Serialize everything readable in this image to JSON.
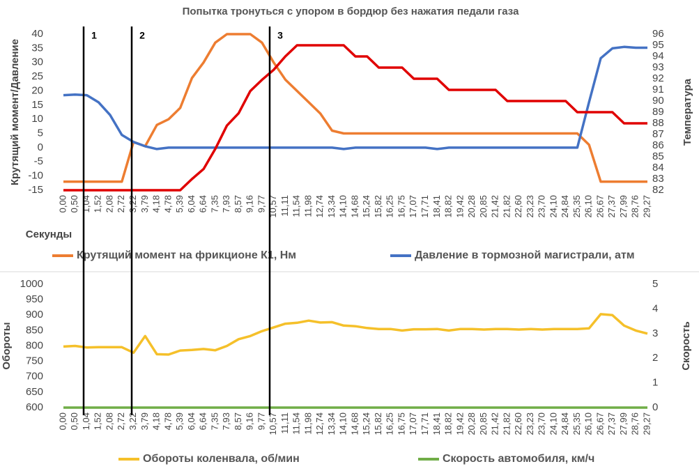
{
  "chart_data": [
    {
      "type": "line",
      "title": "Попытка тронуться с упором в бордюр без нажатия педали газа",
      "x_label": "Секунды",
      "y_label": "Крутящий момент/Давление",
      "y2_label": "Температура",
      "annotations": [
        "1",
        "2",
        "3"
      ],
      "categories": [
        "0,00",
        "0,50",
        "1,04",
        "1,52",
        "2,08",
        "2,72",
        "3,22",
        "3,79",
        "4,18",
        "4,78",
        "5,39",
        "6,04",
        "6,64",
        "7,35",
        "7,93",
        "8,57",
        "9,16",
        "9,77",
        "10,57",
        "11,11",
        "11,54",
        "11,98",
        "12,74",
        "13,34",
        "14,10",
        "14,68",
        "15,24",
        "15,82",
        "16,25",
        "16,75",
        "17,07",
        "17,71",
        "18,41",
        "18,82",
        "19,42",
        "20,28",
        "20,85",
        "21,42",
        "21,82",
        "22,60",
        "23,23",
        "23,70",
        "24,10",
        "24,84",
        "25,35",
        "26,10",
        "26,67",
        "27,37",
        "27,99",
        "28,76",
        "29,27"
      ],
      "series": [
        {
          "name": "Крутящий момент на фрикционе К1, Нм",
          "color": "#ed7d31",
          "values": [
            -12,
            -12,
            -12,
            -12,
            -12,
            -12,
            2,
            0.5,
            8,
            10,
            14,
            24.5,
            30,
            37,
            40,
            40,
            40,
            37,
            30,
            24,
            20,
            16,
            12,
            6,
            5,
            5,
            5,
            5,
            5,
            5,
            5,
            5,
            5,
            5,
            5,
            5,
            5,
            5,
            5,
            5,
            5,
            5,
            5,
            5,
            5,
            1,
            -12,
            -12,
            -12,
            -12,
            -12
          ]
        },
        {
          "name": "Давление в тормозной магистрали, атм",
          "color": "#4472c4",
          "values": [
            18.5,
            18.7,
            18.5,
            16,
            11.5,
            4.5,
            2,
            0.5,
            -0.5,
            0,
            0,
            0,
            0,
            0,
            0,
            0,
            0,
            0,
            0,
            0,
            0,
            0,
            0,
            0,
            -0.5,
            0,
            0,
            0,
            0,
            0,
            0,
            0,
            -0.5,
            0,
            0,
            0,
            0,
            0,
            0,
            0,
            0,
            0,
            0,
            0,
            0,
            16,
            31.5,
            35,
            35.5,
            35.2,
            35.2
          ]
        },
        {
          "color": "#e00000",
          "axis": "y2",
          "values": [
            82,
            82,
            82,
            82,
            82,
            82,
            82,
            82,
            82,
            82,
            82,
            83,
            83.9,
            85.7,
            87.8,
            88.9,
            90.9,
            91.9,
            92.8,
            94,
            95,
            95,
            95,
            95,
            95,
            94,
            94,
            93,
            93,
            93,
            92,
            92,
            92,
            91,
            91,
            91,
            91,
            91,
            90,
            90,
            90,
            90,
            90,
            90,
            89,
            89,
            89,
            89,
            88,
            88,
            88
          ]
        }
      ],
      "ylim": [
        -15,
        40
      ],
      "yticks": [
        -15,
        -10,
        -5,
        0,
        5,
        10,
        15,
        20,
        25,
        30,
        35,
        40
      ],
      "y2lim": [
        82,
        96
      ],
      "y2ticks": [
        82,
        83,
        84,
        85,
        86,
        87,
        88,
        89,
        90,
        91,
        92,
        93,
        94,
        95,
        96
      ]
    },
    {
      "type": "line",
      "y_label": "Обороты",
      "y2_label": "Скорость",
      "categories": [
        "0,00",
        "0,50",
        "1,04",
        "1,52",
        "2,08",
        "2,72",
        "3,22",
        "3,79",
        "4,18",
        "4,78",
        "5,39",
        "6,04",
        "6,64",
        "7,35",
        "7,93",
        "8,57",
        "9,16",
        "9,77",
        "10,57",
        "11,11",
        "11,54",
        "11,98",
        "12,74",
        "13,34",
        "14,10",
        "14,68",
        "15,24",
        "15,82",
        "16,25",
        "16,75",
        "17,07",
        "17,71",
        "18,41",
        "18,82",
        "19,42",
        "20,28",
        "20,85",
        "21,42",
        "21,82",
        "22,60",
        "23,23",
        "23,70",
        "24,10",
        "24,84",
        "25,35",
        "26,10",
        "26,67",
        "27,37",
        "27,99",
        "28,76",
        "29,27"
      ],
      "series": [
        {
          "name": "Обороты коленвала, об/мин",
          "color": "#f5c02a",
          "values": [
            798,
            800,
            795,
            796,
            796,
            796,
            778,
            832,
            773,
            772,
            785,
            787,
            790,
            786,
            800,
            822,
            832,
            848,
            860,
            872,
            875,
            882,
            876,
            877,
            866,
            864,
            858,
            855,
            855,
            850,
            854,
            854,
            855,
            850,
            855,
            855,
            853,
            855,
            855,
            853,
            855,
            853,
            855,
            855,
            855,
            857,
            903,
            900,
            866,
            850,
            840
          ]
        },
        {
          "name": "Скорость автомобиля, км/ч",
          "color": "#70ad47",
          "axis": "y2",
          "values": [
            0,
            0,
            0,
            0,
            0,
            0,
            0,
            0,
            0,
            0,
            0,
            0,
            0,
            0,
            0,
            0,
            0,
            0,
            0,
            0,
            0,
            0,
            0,
            0,
            0,
            0,
            0,
            0,
            0,
            0,
            0,
            0,
            0,
            0,
            0,
            0,
            0,
            0,
            0,
            0,
            0,
            0,
            0,
            0,
            0,
            0,
            0,
            0,
            0,
            0,
            0
          ]
        }
      ],
      "ylim": [
        600,
        1000
      ],
      "yticks": [
        600,
        650,
        700,
        750,
        800,
        850,
        900,
        950,
        1000
      ],
      "y2lim": [
        0,
        5
      ],
      "y2ticks": [
        0,
        1,
        2,
        3,
        4,
        5
      ]
    }
  ]
}
